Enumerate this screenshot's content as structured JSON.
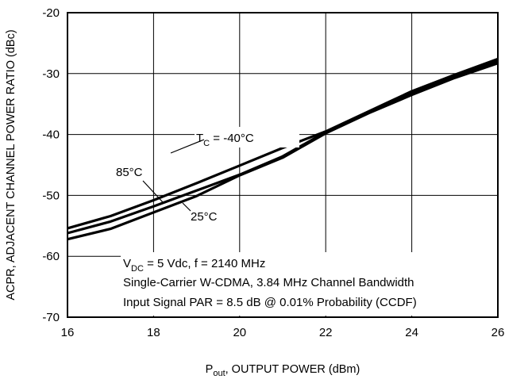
{
  "chart_data": {
    "type": "line",
    "xlabel_main": "P",
    "xlabel_sub": "out",
    "xlabel_rest": ", OUTPUT POWER (dBm)",
    "ylabel": "ACPR, ADJACENT CHANNEL POWER RATIO (dBc)",
    "xlim": [
      16,
      26
    ],
    "ylim": [
      -70,
      -20
    ],
    "xticks": [
      16,
      18,
      20,
      22,
      24,
      26
    ],
    "yticks": [
      -70,
      -60,
      -50,
      -40,
      -30,
      -20
    ],
    "grid": true,
    "series": [
      {
        "name": "T_C = -40°C",
        "x": [
          16,
          17,
          18,
          19,
          20,
          21,
          22,
          23,
          24,
          25,
          26
        ],
        "y": [
          -55.4,
          -53.4,
          -50.8,
          -48,
          -45.1,
          -42.2,
          -39.5,
          -36.2,
          -32.9,
          -30.2,
          -27.6
        ]
      },
      {
        "name": "85°C",
        "x": [
          16,
          17,
          18,
          19,
          20,
          21,
          22,
          23,
          24,
          25,
          26
        ],
        "y": [
          -56.2,
          -54.3,
          -51.8,
          -49.2,
          -46.6,
          -43.6,
          -39.6,
          -36.4,
          -33.2,
          -30.5,
          -28.0
        ]
      },
      {
        "name": "25°C",
        "x": [
          16,
          17,
          18,
          19,
          20,
          21,
          22,
          23,
          24,
          25,
          26
        ],
        "y": [
          -57.2,
          -55.5,
          -52.8,
          -50.1,
          -46.7,
          -43.8,
          -39.8,
          -36.5,
          -33.5,
          -30.7,
          -28.3
        ]
      }
    ],
    "annotations": {
      "tc_prefix": "T",
      "tc_sub": "C",
      "tc_rest": " = -40°C",
      "label_85": "85°C",
      "label_25": "25°C",
      "cond_line1_prefix": "V",
      "cond_line1_sub": "DC",
      "cond_line1_rest": " = 5 Vdc, f = 2140 MHz",
      "cond_line2": "Single-Carrier W-CDMA, 3.84 MHz Channel Bandwidth",
      "cond_line3": "Input Signal PAR = 8.5 dB @ 0.01% Probability (CCDF)"
    }
  }
}
